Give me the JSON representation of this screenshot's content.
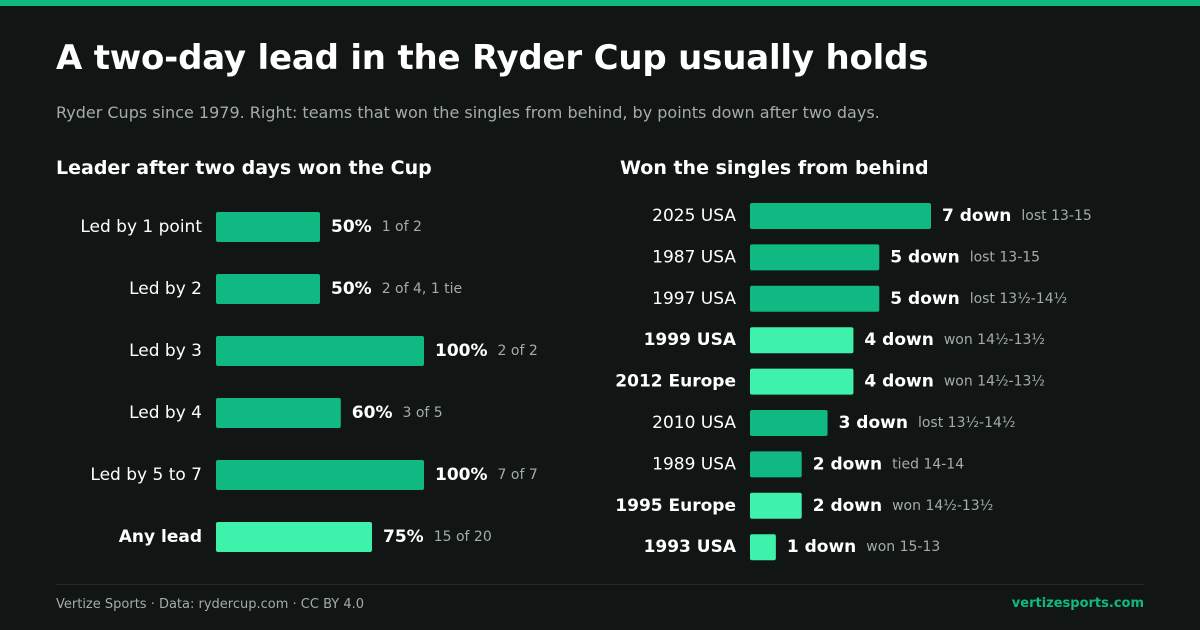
{
  "header": {
    "title": "A two-day lead in the Ryder Cup usually holds",
    "subtitle": "Ryder Cups since 1979. Right: teams that won the singles from behind, by points down after two days."
  },
  "colors": {
    "accent": "#10b981",
    "highlight": "#3ff2ab",
    "background": "#111614",
    "muted": "#a4acaa"
  },
  "chart_data": [
    {
      "type": "bar",
      "orientation": "horizontal",
      "title": "Leader after two days won the Cup",
      "unit": "%",
      "xlim": [
        0,
        100
      ],
      "categories": [
        "Led by 1 point",
        "Led by 2",
        "Led by 3",
        "Led by 4",
        "Led by 5 to 7",
        "Any lead"
      ],
      "values": [
        50,
        50,
        100,
        60,
        100,
        75
      ],
      "value_labels": [
        "50%",
        "50%",
        "100%",
        "60%",
        "100%",
        "75%"
      ],
      "notes": [
        "1 of 2",
        "2 of 4, 1 tie",
        "2 of 2",
        "3 of 5",
        "7 of 7",
        "15 of 20"
      ],
      "highlighted": [
        false,
        false,
        false,
        false,
        false,
        true
      ]
    },
    {
      "type": "bar",
      "orientation": "horizontal",
      "title": "Won the singles from behind",
      "unit": "points down",
      "xlim": [
        0,
        7
      ],
      "categories": [
        "2025 USA",
        "1987 USA",
        "1997 USA",
        "1999 USA",
        "2012 Europe",
        "2010 USA",
        "1989 USA",
        "1995 Europe",
        "1993 USA"
      ],
      "values": [
        7,
        5,
        5,
        4,
        4,
        3,
        2,
        2,
        1
      ],
      "value_labels": [
        "7 down",
        "5 down",
        "5 down",
        "4 down",
        "4 down",
        "3 down",
        "2 down",
        "2 down",
        "1 down"
      ],
      "notes": [
        "lost 13-15",
        "lost 13-15",
        "lost 13½-14½",
        "won 14½-13½",
        "won 14½-13½",
        "lost 13½-14½",
        "tied 14-14",
        "won 14½-13½",
        "won 15-13"
      ],
      "highlighted": [
        false,
        false,
        false,
        true,
        true,
        false,
        false,
        true,
        true
      ]
    }
  ],
  "footer": {
    "credit": "Vertize Sports · Data: rydercup.com · CC BY 4.0",
    "site": "vertizesports.com"
  }
}
